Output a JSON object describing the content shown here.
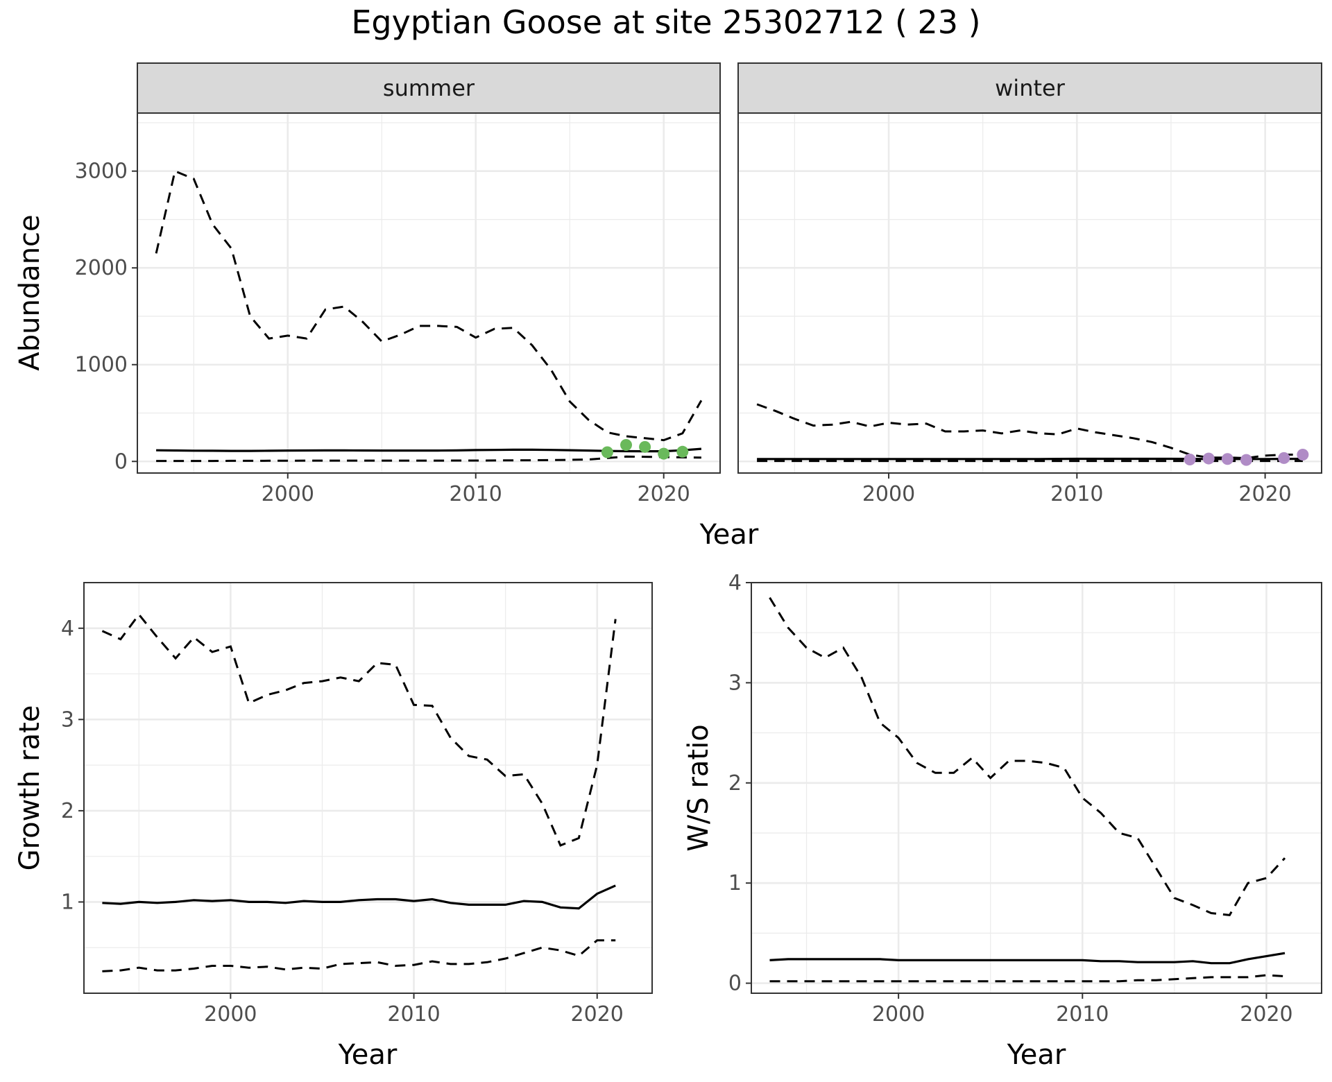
{
  "title": "Egyptian Goose at site 25302712 ( 23 )",
  "colors": {
    "summer_points": "#6ab95b",
    "winter_points": "#b08cc6",
    "line": "#000000",
    "grid": "#ebebeb",
    "strip": "#d9d9d9"
  },
  "chart_data": [
    {
      "type": "line",
      "facet": "summer",
      "xlabel": "Year",
      "ylabel": "Abundance",
      "xlim": [
        1992,
        2023
      ],
      "ylim": [
        -120,
        3600
      ],
      "xticks": [
        2000,
        2010,
        2020
      ],
      "yticks": [
        0,
        1000,
        2000,
        3000
      ],
      "grid": true,
      "x": [
        1993,
        1994,
        1995,
        1996,
        1997,
        1998,
        1999,
        2000,
        2001,
        2002,
        2003,
        2004,
        2005,
        2006,
        2007,
        2008,
        2009,
        2010,
        2011,
        2012,
        2013,
        2014,
        2015,
        2016,
        2017,
        2018,
        2019,
        2020,
        2021,
        2022
      ],
      "estimate": [
        115,
        113,
        111,
        110,
        109,
        109,
        110,
        112,
        113,
        114,
        114,
        113,
        112,
        112,
        112,
        112,
        114,
        117,
        119,
        121,
        121,
        119,
        116,
        112,
        108,
        106,
        105,
        105,
        115,
        130
      ],
      "upper": [
        2150,
        3000,
        2920,
        2450,
        2200,
        1500,
        1270,
        1300,
        1270,
        1570,
        1600,
        1440,
        1240,
        1310,
        1400,
        1400,
        1390,
        1280,
        1370,
        1380,
        1200,
        950,
        620,
        430,
        300,
        260,
        240,
        220,
        290,
        630
      ],
      "lower": [
        5,
        5,
        5,
        5,
        6,
        6,
        7,
        7,
        8,
        8,
        8,
        8,
        8,
        8,
        8,
        8,
        9,
        9,
        10,
        11,
        12,
        13,
        16,
        20,
        35,
        50,
        48,
        45,
        42,
        40
      ],
      "points": {
        "x": [
          2017,
          2018,
          2019,
          2020,
          2021
        ],
        "y": [
          95,
          170,
          150,
          80,
          100
        ]
      }
    },
    {
      "type": "line",
      "facet": "winter",
      "xlabel": "Year",
      "ylabel": "Abundance",
      "xlim": [
        1992,
        2023
      ],
      "ylim": [
        -120,
        3600
      ],
      "xticks": [
        2000,
        2010,
        2020
      ],
      "yticks": [
        0,
        1000,
        2000,
        3000
      ],
      "grid": true,
      "x": [
        1993,
        1994,
        1995,
        1996,
        1997,
        1998,
        1999,
        2000,
        2001,
        2002,
        2003,
        2004,
        2005,
        2006,
        2007,
        2008,
        2009,
        2010,
        2011,
        2012,
        2013,
        2014,
        2015,
        2016,
        2017,
        2018,
        2019,
        2020,
        2021,
        2022
      ],
      "estimate": [
        25,
        25,
        25,
        25,
        25,
        25,
        25,
        25,
        25,
        25,
        25,
        25,
        25,
        25,
        25,
        25,
        26,
        27,
        27,
        27,
        27,
        27,
        27,
        26,
        25,
        25,
        25,
        25,
        26,
        27
      ],
      "upper": [
        590,
        520,
        440,
        370,
        380,
        410,
        360,
        400,
        380,
        390,
        310,
        310,
        320,
        290,
        320,
        290,
        280,
        340,
        300,
        270,
        240,
        200,
        140,
        70,
        40,
        40,
        35,
        60,
        70,
        70
      ],
      "lower": [
        5,
        5,
        5,
        5,
        5,
        5,
        5,
        5,
        5,
        5,
        5,
        5,
        5,
        5,
        5,
        5,
        5,
        5,
        5,
        5,
        5,
        5,
        5,
        5,
        5,
        5,
        5,
        5,
        5,
        5
      ],
      "points": {
        "x": [
          2016,
          2017,
          2018,
          2019,
          2021,
          2022
        ],
        "y": [
          20,
          30,
          25,
          15,
          35,
          70
        ]
      }
    },
    {
      "type": "line",
      "xlabel": "Year",
      "ylabel": "Growth rate",
      "xlim": [
        1992,
        2023
      ],
      "ylim": [
        0.0,
        4.5
      ],
      "xticks": [
        2000,
        2010,
        2020
      ],
      "yticks": [
        1,
        2,
        3,
        4
      ],
      "grid": true,
      "x": [
        1993,
        1994,
        1995,
        1996,
        1997,
        1998,
        1999,
        2000,
        2001,
        2002,
        2003,
        2004,
        2005,
        2006,
        2007,
        2008,
        2009,
        2010,
        2011,
        2012,
        2013,
        2014,
        2015,
        2016,
        2017,
        2018,
        2019,
        2020,
        2021
      ],
      "estimate": [
        0.99,
        0.98,
        1.0,
        0.99,
        1.0,
        1.02,
        1.01,
        1.02,
        1.0,
        1.0,
        0.99,
        1.01,
        1.0,
        1.0,
        1.02,
        1.03,
        1.03,
        1.01,
        1.03,
        0.99,
        0.97,
        0.97,
        0.97,
        1.01,
        1.0,
        0.94,
        0.93,
        1.09,
        1.18
      ],
      "upper": [
        3.97,
        3.88,
        4.15,
        3.9,
        3.67,
        3.9,
        3.74,
        3.8,
        3.18,
        3.27,
        3.32,
        3.4,
        3.42,
        3.46,
        3.42,
        3.62,
        3.6,
        3.16,
        3.15,
        2.8,
        2.6,
        2.56,
        2.38,
        2.4,
        2.08,
        1.62,
        1.7,
        2.5,
        4.1
      ],
      "lower": [
        0.24,
        0.25,
        0.28,
        0.25,
        0.25,
        0.27,
        0.3,
        0.3,
        0.28,
        0.29,
        0.26,
        0.28,
        0.27,
        0.32,
        0.33,
        0.34,
        0.3,
        0.31,
        0.35,
        0.32,
        0.32,
        0.34,
        0.38,
        0.44,
        0.5,
        0.47,
        0.41,
        0.58,
        0.58
      ]
    },
    {
      "type": "line",
      "xlabel": "Year",
      "ylabel": "W/S ratio",
      "xlim": [
        1992,
        2023
      ],
      "ylim": [
        -0.1,
        4.0
      ],
      "xticks": [
        2000,
        2010,
        2020
      ],
      "yticks": [
        0,
        1,
        2,
        3,
        4
      ],
      "grid": true,
      "x": [
        1993,
        1994,
        1995,
        1996,
        1997,
        1998,
        1999,
        2000,
        2001,
        2002,
        2003,
        2004,
        2005,
        2006,
        2007,
        2008,
        2009,
        2010,
        2011,
        2012,
        2013,
        2014,
        2015,
        2016,
        2017,
        2018,
        2019,
        2020,
        2021
      ],
      "estimate": [
        0.23,
        0.24,
        0.24,
        0.24,
        0.24,
        0.24,
        0.24,
        0.23,
        0.23,
        0.23,
        0.23,
        0.23,
        0.23,
        0.23,
        0.23,
        0.23,
        0.23,
        0.23,
        0.22,
        0.22,
        0.21,
        0.21,
        0.21,
        0.22,
        0.2,
        0.2,
        0.24,
        0.27,
        0.3
      ],
      "upper": [
        3.85,
        3.55,
        3.35,
        3.25,
        3.35,
        3.05,
        2.6,
        2.45,
        2.2,
        2.1,
        2.1,
        2.25,
        2.05,
        2.22,
        2.22,
        2.2,
        2.15,
        1.85,
        1.7,
        1.5,
        1.45,
        1.15,
        0.85,
        0.78,
        0.7,
        0.68,
        1.0,
        1.05,
        1.25
      ],
      "lower": [
        0.02,
        0.02,
        0.02,
        0.02,
        0.02,
        0.02,
        0.02,
        0.02,
        0.02,
        0.02,
        0.02,
        0.02,
        0.02,
        0.02,
        0.02,
        0.02,
        0.02,
        0.02,
        0.02,
        0.02,
        0.03,
        0.03,
        0.04,
        0.05,
        0.06,
        0.06,
        0.06,
        0.08,
        0.07
      ]
    }
  ]
}
